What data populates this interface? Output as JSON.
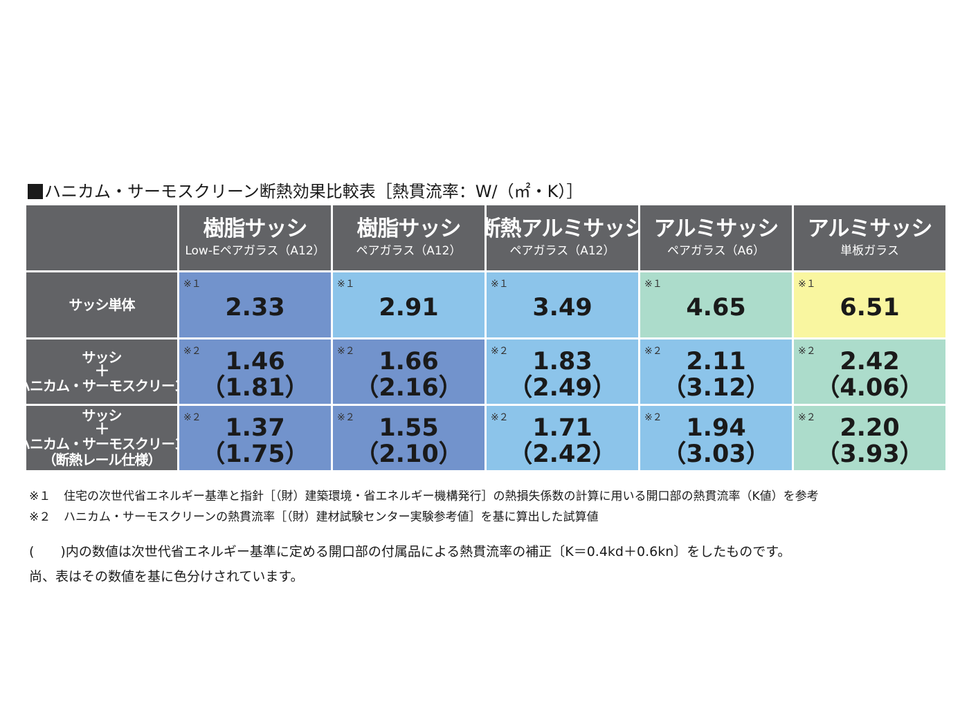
{
  "title": "ハニカム・サーモスクリーン断熱効果比較表［熱貫流率：W/（㎡・K）］",
  "columns": [
    {
      "name": "樹脂サッシ",
      "glass": "Low-Eペアガラス（A12）"
    },
    {
      "name": "樹脂サッシ",
      "glass": "ペアガラス（A12）"
    },
    {
      "name": "断熱アルミサッシ",
      "glass": "ペアガラス（A12）"
    },
    {
      "name": "アルミサッシ",
      "glass": "ペアガラス（A6）"
    },
    {
      "name": "アルミサッシ",
      "glass": "単板ガラス"
    }
  ],
  "rows": [
    {
      "label": [
        "サッシ単体"
      ],
      "cells": [
        {
          "note": "※１",
          "value": "2.33",
          "color": "#7293cc"
        },
        {
          "note": "※１",
          "value": "2.91",
          "color": "#8cc4ea"
        },
        {
          "note": "※１",
          "value": "3.49",
          "color": "#8cc4ea"
        },
        {
          "note": "※１",
          "value": "4.65",
          "color": "#acdccb"
        },
        {
          "note": "※１",
          "value": "6.51",
          "color": "#f9f6a0"
        }
      ]
    },
    {
      "label": [
        "サッシ",
        "＋",
        "ハニカム・サーモスクリーン"
      ],
      "cells": [
        {
          "note": "※２",
          "value": "1.46",
          "sub": "（1.81）",
          "color": "#7293cc"
        },
        {
          "note": "※２",
          "value": "1.66",
          "sub": "（2.16）",
          "color": "#7293cc"
        },
        {
          "note": "※２",
          "value": "1.83",
          "sub": "（2.49）",
          "color": "#8cc4ea"
        },
        {
          "note": "※２",
          "value": "2.11",
          "sub": "（3.12）",
          "color": "#8cc4ea"
        },
        {
          "note": "※２",
          "value": "2.42",
          "sub": "（4.06）",
          "color": "#acdccb"
        }
      ]
    },
    {
      "label": [
        "サッシ",
        "＋",
        "ハニカム・サーモスクリーン",
        "（断熱レール仕様）"
      ],
      "cells": [
        {
          "note": "※２",
          "value": "1.37",
          "sub": "（1.75）",
          "color": "#7293cc"
        },
        {
          "note": "※２",
          "value": "1.55",
          "sub": "（2.10）",
          "color": "#7293cc"
        },
        {
          "note": "※２",
          "value": "1.71",
          "sub": "（2.42）",
          "color": "#8cc4ea"
        },
        {
          "note": "※２",
          "value": "1.94",
          "sub": "（3.03）",
          "color": "#8cc4ea"
        },
        {
          "note": "※２",
          "value": "2.20",
          "sub": "（3.93）",
          "color": "#acdccb"
        }
      ]
    }
  ],
  "footnotes": [
    {
      "mark": "※１",
      "text": "住宅の次世代省エネルギー基準と指針［（財）建築環境・省エネルギー機構発行］の熱損失係数の計算に用いる開口部の熱貫流率（K値）を参考"
    },
    {
      "mark": "※２",
      "text": "ハニカム・サーモスクリーンの熱貫流率［（財）建材試験センター実験参考値］を基に算出した試算値"
    }
  ],
  "notes": [
    "(　　)内の数値は次世代省エネルギー基準に定める開口部の付属品による熱貫流率の補正〔K＝0.4kd＋0.6kn〕をしたものです。",
    "尚、表はその数値を基に色分けされています。"
  ]
}
